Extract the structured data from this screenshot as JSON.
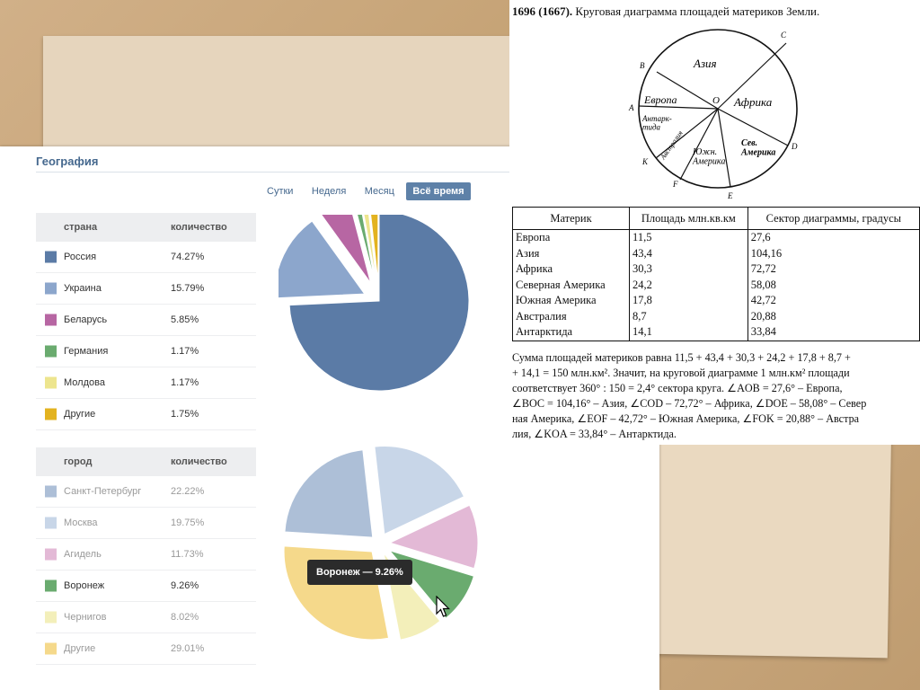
{
  "vk": {
    "title": "География",
    "periods": [
      {
        "label": "Сутки",
        "active": false
      },
      {
        "label": "Неделя",
        "active": false
      },
      {
        "label": "Месяц",
        "active": false
      },
      {
        "label": "Всё время",
        "active": true
      }
    ],
    "countries": {
      "col_name": "страна",
      "col_value": "количество",
      "rows": [
        {
          "name": "Россия",
          "value": "74.27%",
          "color": "#5b7ba6"
        },
        {
          "name": "Украина",
          "value": "15.79%",
          "color": "#8ca6cc"
        },
        {
          "name": "Беларусь",
          "value": "5.85%",
          "color": "#b766a3"
        },
        {
          "name": "Германия",
          "value": "1.17%",
          "color": "#6aab6f"
        },
        {
          "name": "Молдова",
          "value": "1.17%",
          "color": "#ede58e"
        },
        {
          "name": "Другие",
          "value": "1.75%",
          "color": "#e3b320"
        }
      ]
    },
    "cities": {
      "col_name": "город",
      "col_value": "количество",
      "rows": [
        {
          "name": "Санкт-Петербург",
          "value": "22.22%",
          "color": "#adbfd7",
          "hl": false
        },
        {
          "name": "Москва",
          "value": "19.75%",
          "color": "#c8d6e8",
          "hl": false
        },
        {
          "name": "Агидель",
          "value": "11.73%",
          "color": "#e3b9d6",
          "hl": false
        },
        {
          "name": "Воронеж",
          "value": "9.26%",
          "color": "#6aab6f",
          "hl": true
        },
        {
          "name": "Чернигов",
          "value": "8.02%",
          "color": "#f3efba",
          "hl": false
        },
        {
          "name": "Другие",
          "value": "29.01%",
          "color": "#f5d98b",
          "hl": false
        }
      ]
    },
    "tooltip": "Воронеж — 9.26%"
  },
  "chart_data": [
    {
      "type": "pie",
      "categories": [
        "Россия",
        "Украина",
        "Беларусь",
        "Германия",
        "Молдова",
        "Другие"
      ],
      "values": [
        74.27,
        15.79,
        5.85,
        1.17,
        1.17,
        1.75
      ],
      "colors": [
        "#5b7ba6",
        "#8ca6cc",
        "#b766a3",
        "#6aab6f",
        "#ede58e",
        "#e3b320"
      ]
    },
    {
      "type": "pie",
      "categories": [
        "Санкт-Петербург",
        "Москва",
        "Агидель",
        "Воронеж",
        "Чернигов",
        "Другие"
      ],
      "values": [
        22.22,
        19.75,
        11.73,
        9.26,
        8.02,
        29.01
      ],
      "colors": [
        "#adbfd7",
        "#c8d6e8",
        "#e3b9d6",
        "#6aab6f",
        "#f3efba",
        "#f5d98b"
      ]
    }
  ],
  "scan": {
    "title_num": "1696 (1667).",
    "title_text": "Круговая диаграмма площадей материков Земли.",
    "circle_labels": {
      "asia": "Азия",
      "europe": "Европа",
      "africa": "Африка",
      "antarctica": "Антарк-\nтида",
      "australia": "Австралия",
      "south_america": "Южн.\nАмерика",
      "north_america": "Сев.\nАмерика",
      "O": "O",
      "A": "A",
      "B": "B",
      "C": "C",
      "D": "D",
      "E": "E",
      "F": "F",
      "K": "K"
    },
    "table_headers": [
      "Материк",
      "Площадь млн.кв.км",
      "Сектор диаграммы, градусы"
    ],
    "table_rows": [
      [
        "Европа",
        "11,5",
        "27,6"
      ],
      [
        "Азия",
        "43,4",
        "104,16"
      ],
      [
        "Африка",
        "30,3",
        "72,72"
      ],
      [
        "Северная Америка",
        "24,2",
        "58,08"
      ],
      [
        "Южная Америка",
        "17,8",
        "42,72"
      ],
      [
        "Австралия",
        "8,7",
        "20,88"
      ],
      [
        "Антарктида",
        "14,1",
        "33,84"
      ]
    ],
    "text_lines": [
      "Сумма площадей материков равна 11,5 + 43,4 + 30,3 + 24,2 + 17,8 + 8,7 +",
      "+ 14,1 = 150 млн.км². Значит, на круговой диаграмме 1 млн.км² площади",
      "соответствует 360° : 150 = 2,4° сектора круга. ∠AOB = 27,6° – Европа,",
      "∠BOC = 104,16° – Азия, ∠COD – 72,72° – Африка, ∠DOE – 58,08° – Север",
      "ная Америка, ∠EOF – 42,72° – Южная Америка, ∠FOK = 20,88° – Австра",
      "лия, ∠KOA = 33,84° – Антарктида."
    ]
  }
}
